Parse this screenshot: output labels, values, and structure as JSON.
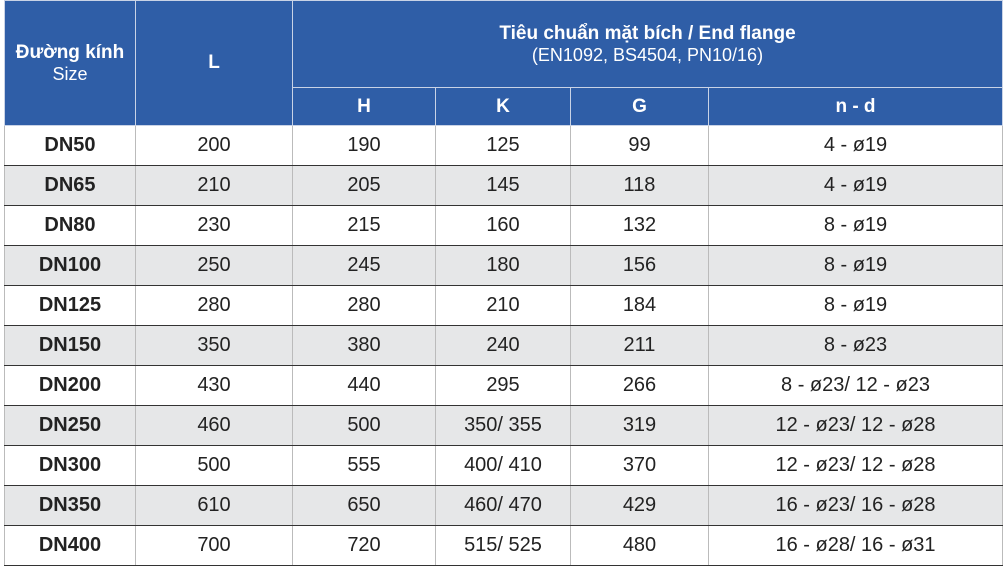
{
  "header": {
    "size_vi": "Đường kính",
    "size_en": "Size",
    "length": "L",
    "standard_title": "Tiêu chuẩn mặt bích  / End flange",
    "standard_sub": "(EN1092, BS4504, PN10/16)",
    "columns": [
      "H",
      "K",
      "G",
      "n - d"
    ]
  },
  "table": {
    "rows": [
      [
        "DN50",
        200,
        190,
        125,
        99,
        "4 - ø19"
      ],
      [
        "DN65",
        210,
        205,
        145,
        118,
        "4 - ø19"
      ],
      [
        "DN80",
        230,
        215,
        160,
        132,
        "8 - ø19"
      ],
      [
        "DN100",
        250,
        245,
        180,
        156,
        "8 - ø19"
      ],
      [
        "DN125",
        280,
        280,
        210,
        184,
        "8 - ø19"
      ],
      [
        "DN150",
        350,
        380,
        240,
        211,
        "8 - ø23"
      ],
      [
        "DN200",
        430,
        440,
        295,
        266,
        "8 - ø23/ 12 - ø23"
      ],
      [
        "DN250",
        460,
        500,
        "350/ 355",
        319,
        "12 - ø23/ 12 - ø28"
      ],
      [
        "DN300",
        500,
        555,
        "400/ 410",
        370,
        "12 - ø23/ 12 - ø28"
      ],
      [
        "DN350",
        610,
        650,
        "460/ 470",
        429,
        "16 - ø23/ 16 - ø28"
      ],
      [
        "DN400",
        700,
        720,
        "515/ 525",
        480,
        "16 - ø28/ 16 - ø31"
      ]
    ]
  }
}
